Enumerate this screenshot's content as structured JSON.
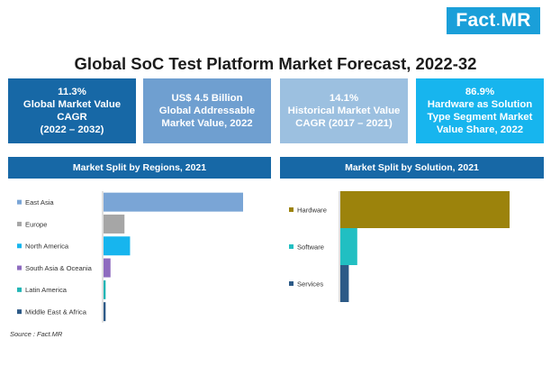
{
  "brand": {
    "name_left": "Fact",
    "name_sep": ".",
    "name_right": "MR"
  },
  "title": "Global SoC Test Platform Market Forecast, 2022-32",
  "kpis": [
    {
      "lines": [
        "11.3%",
        "Global Market Value",
        "CAGR",
        "(2022 – 2032)"
      ],
      "color": "#1768a6"
    },
    {
      "lines": [
        "US$ 4.5 Billion",
        "Global Addressable",
        "Market Value, 2022"
      ],
      "color": "#6f9fd0"
    },
    {
      "lines": [
        "14.1%",
        "Historical Market Value",
        "CAGR (2017 – 2021)"
      ],
      "color": "#9cc0e0"
    },
    {
      "lines": [
        "86.9%",
        "Hardware as Solution",
        "Type Segment Market",
        "Value Share, 2022"
      ],
      "color": "#17b5ee"
    }
  ],
  "chart_data": [
    {
      "type": "bar",
      "orientation": "horizontal",
      "title": "Market Split by Regions, 2021",
      "categories": [
        "East Asia",
        "Europe",
        "North America",
        "South Asia & Oceania",
        "Latin America",
        "Middle East & Africa"
      ],
      "values": [
        100,
        15,
        19,
        5,
        1.5,
        1.5
      ],
      "colors": [
        "#7aa5d6",
        "#a6a6a6",
        "#17b5ee",
        "#8e6bbf",
        "#21b5b5",
        "#2d5a87"
      ],
      "grid": false,
      "legend": "none"
    },
    {
      "type": "bar",
      "orientation": "horizontal",
      "title": "Market Split by Solution, 2021",
      "categories": [
        "Hardware",
        "Software",
        "Services"
      ],
      "values": [
        100,
        10,
        5
      ],
      "colors": [
        "#9c830c",
        "#21bfc2",
        "#2d5a87"
      ],
      "grid": false,
      "legend": "none"
    }
  ],
  "source": "Source : Fact.MR"
}
